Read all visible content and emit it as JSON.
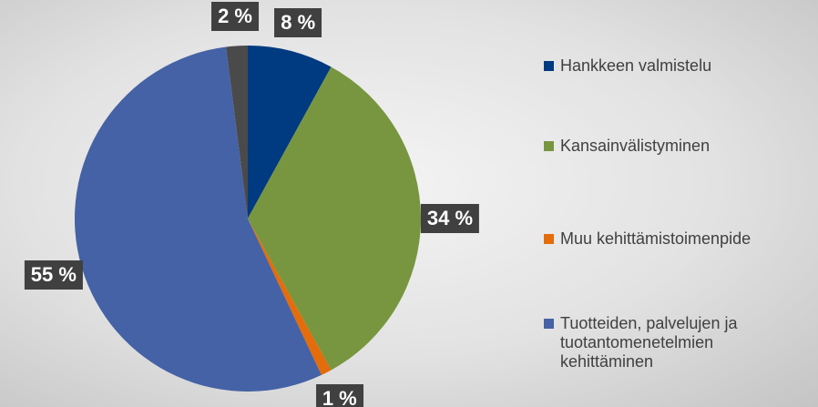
{
  "chart_data": {
    "type": "pie",
    "categories": [
      "Hankkeen valmistelu",
      "Kansainvälistyminen",
      "Muu kehittämistoimenpide",
      "Tuotteiden, palvelujen ja tuotantomenetelmien kehittäminen",
      null
    ],
    "values": [
      8,
      34,
      1,
      55,
      2
    ],
    "value_labels": [
      "8 %",
      "34 %",
      "1 %",
      "55 %",
      "2 %"
    ],
    "colors": [
      "#003a80",
      "#77963f",
      "#e46c0a",
      "#4462a5",
      "#4a4a4a"
    ],
    "legend": "right"
  }
}
